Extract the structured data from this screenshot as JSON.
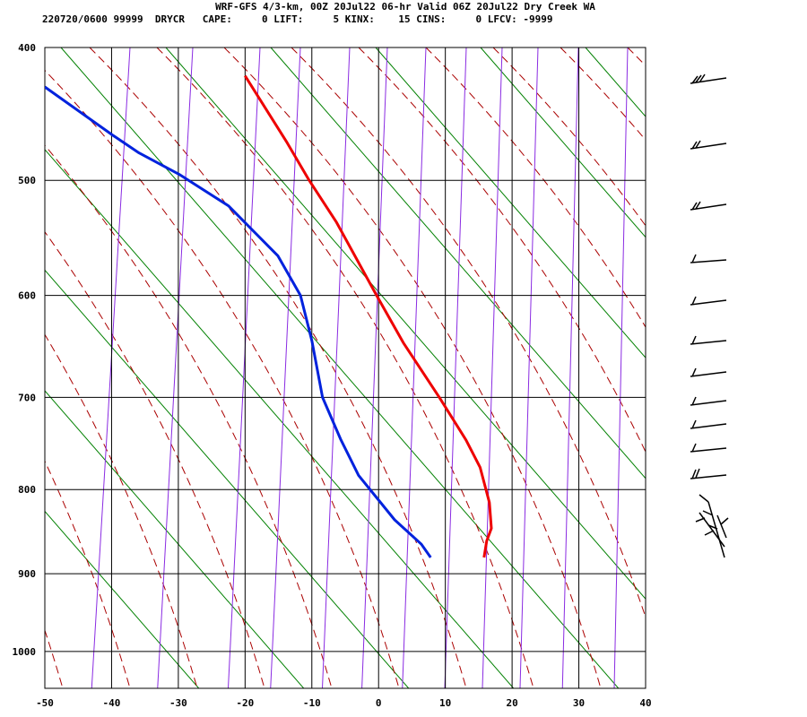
{
  "header": {
    "title": "WRF-GFS 4/3-km, 00Z 20Jul22 06-hr Valid 06Z 20Jul22 Dry Creek WA",
    "subtitle": "220720/0600 99999  DRYCR   CAPE:     0 LIFT:     5 KINX:    15 CINS:     0 LFCV: -9999"
  },
  "chart_data": {
    "type": "line",
    "xlim": [
      -50,
      40
    ],
    "xticks": [
      -50,
      -40,
      -30,
      -20,
      -10,
      0,
      10,
      20,
      30,
      40
    ],
    "ylim": [
      400,
      1050
    ],
    "yticks": [
      400,
      500,
      600,
      700,
      800,
      900,
      1000
    ],
    "grid": true,
    "series": [
      {
        "color": "#ee0000",
        "x": [
          -20,
          -13.7,
          -10.4,
          -6.3,
          -0.3,
          3.7,
          9.1,
          13.1,
          15.2,
          16.6,
          16.9,
          16.2,
          15.8
        ],
        "values": [
          420,
          470,
          500,
          535,
          600,
          645,
          700,
          745,
          775,
          815,
          845,
          860,
          880
        ]
      },
      {
        "color": "#0022dd",
        "x": [
          -50,
          -39.9,
          -35.9,
          -29.9,
          -22.5,
          -15.1,
          -11.7,
          -10,
          -8.4,
          -5.7,
          -3,
          2.4,
          6.4,
          7.8
        ],
        "values": [
          428,
          464,
          478,
          495,
          521,
          564,
          600,
          643,
          700,
          744,
          784,
          835,
          864,
          880
        ]
      }
    ]
  }
}
